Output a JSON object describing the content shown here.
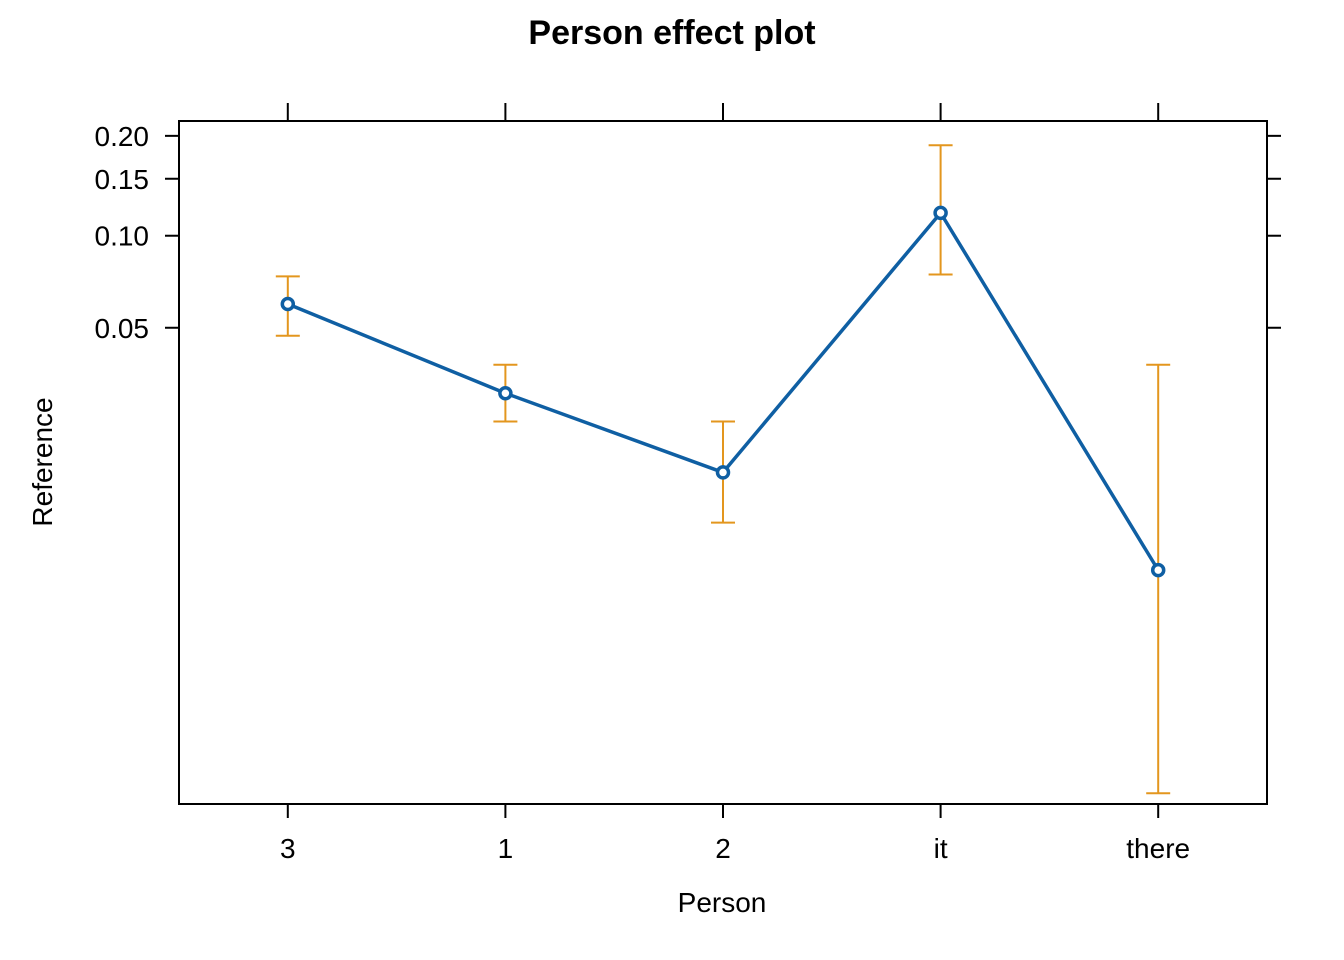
{
  "chart_data": {
    "type": "line",
    "title": "Person effect plot",
    "xlabel": "Person",
    "ylabel": "Reference",
    "scale": "logit",
    "categories": [
      "3",
      "1",
      "2",
      "it",
      "there"
    ],
    "series": [
      {
        "values": [
          0.06,
          0.03,
          0.016,
          0.118,
          0.0073
        ],
        "lower": [
          0.047,
          0.024,
          0.0107,
          0.075,
          0.0012
        ],
        "upper": [
          0.074,
          0.0375,
          0.024,
          0.188,
          0.0375
        ]
      }
    ],
    "ylim": [
      0.0011,
      0.22
    ],
    "yticks": [
      0.05,
      0.1,
      0.15,
      0.2
    ],
    "ytick_labels": [
      "0.05",
      "0.10",
      "0.15",
      "0.20"
    ],
    "grid": false,
    "colors": {
      "line": "#0f5fa3",
      "ci": "#e3961e",
      "axis": "#000000"
    }
  }
}
